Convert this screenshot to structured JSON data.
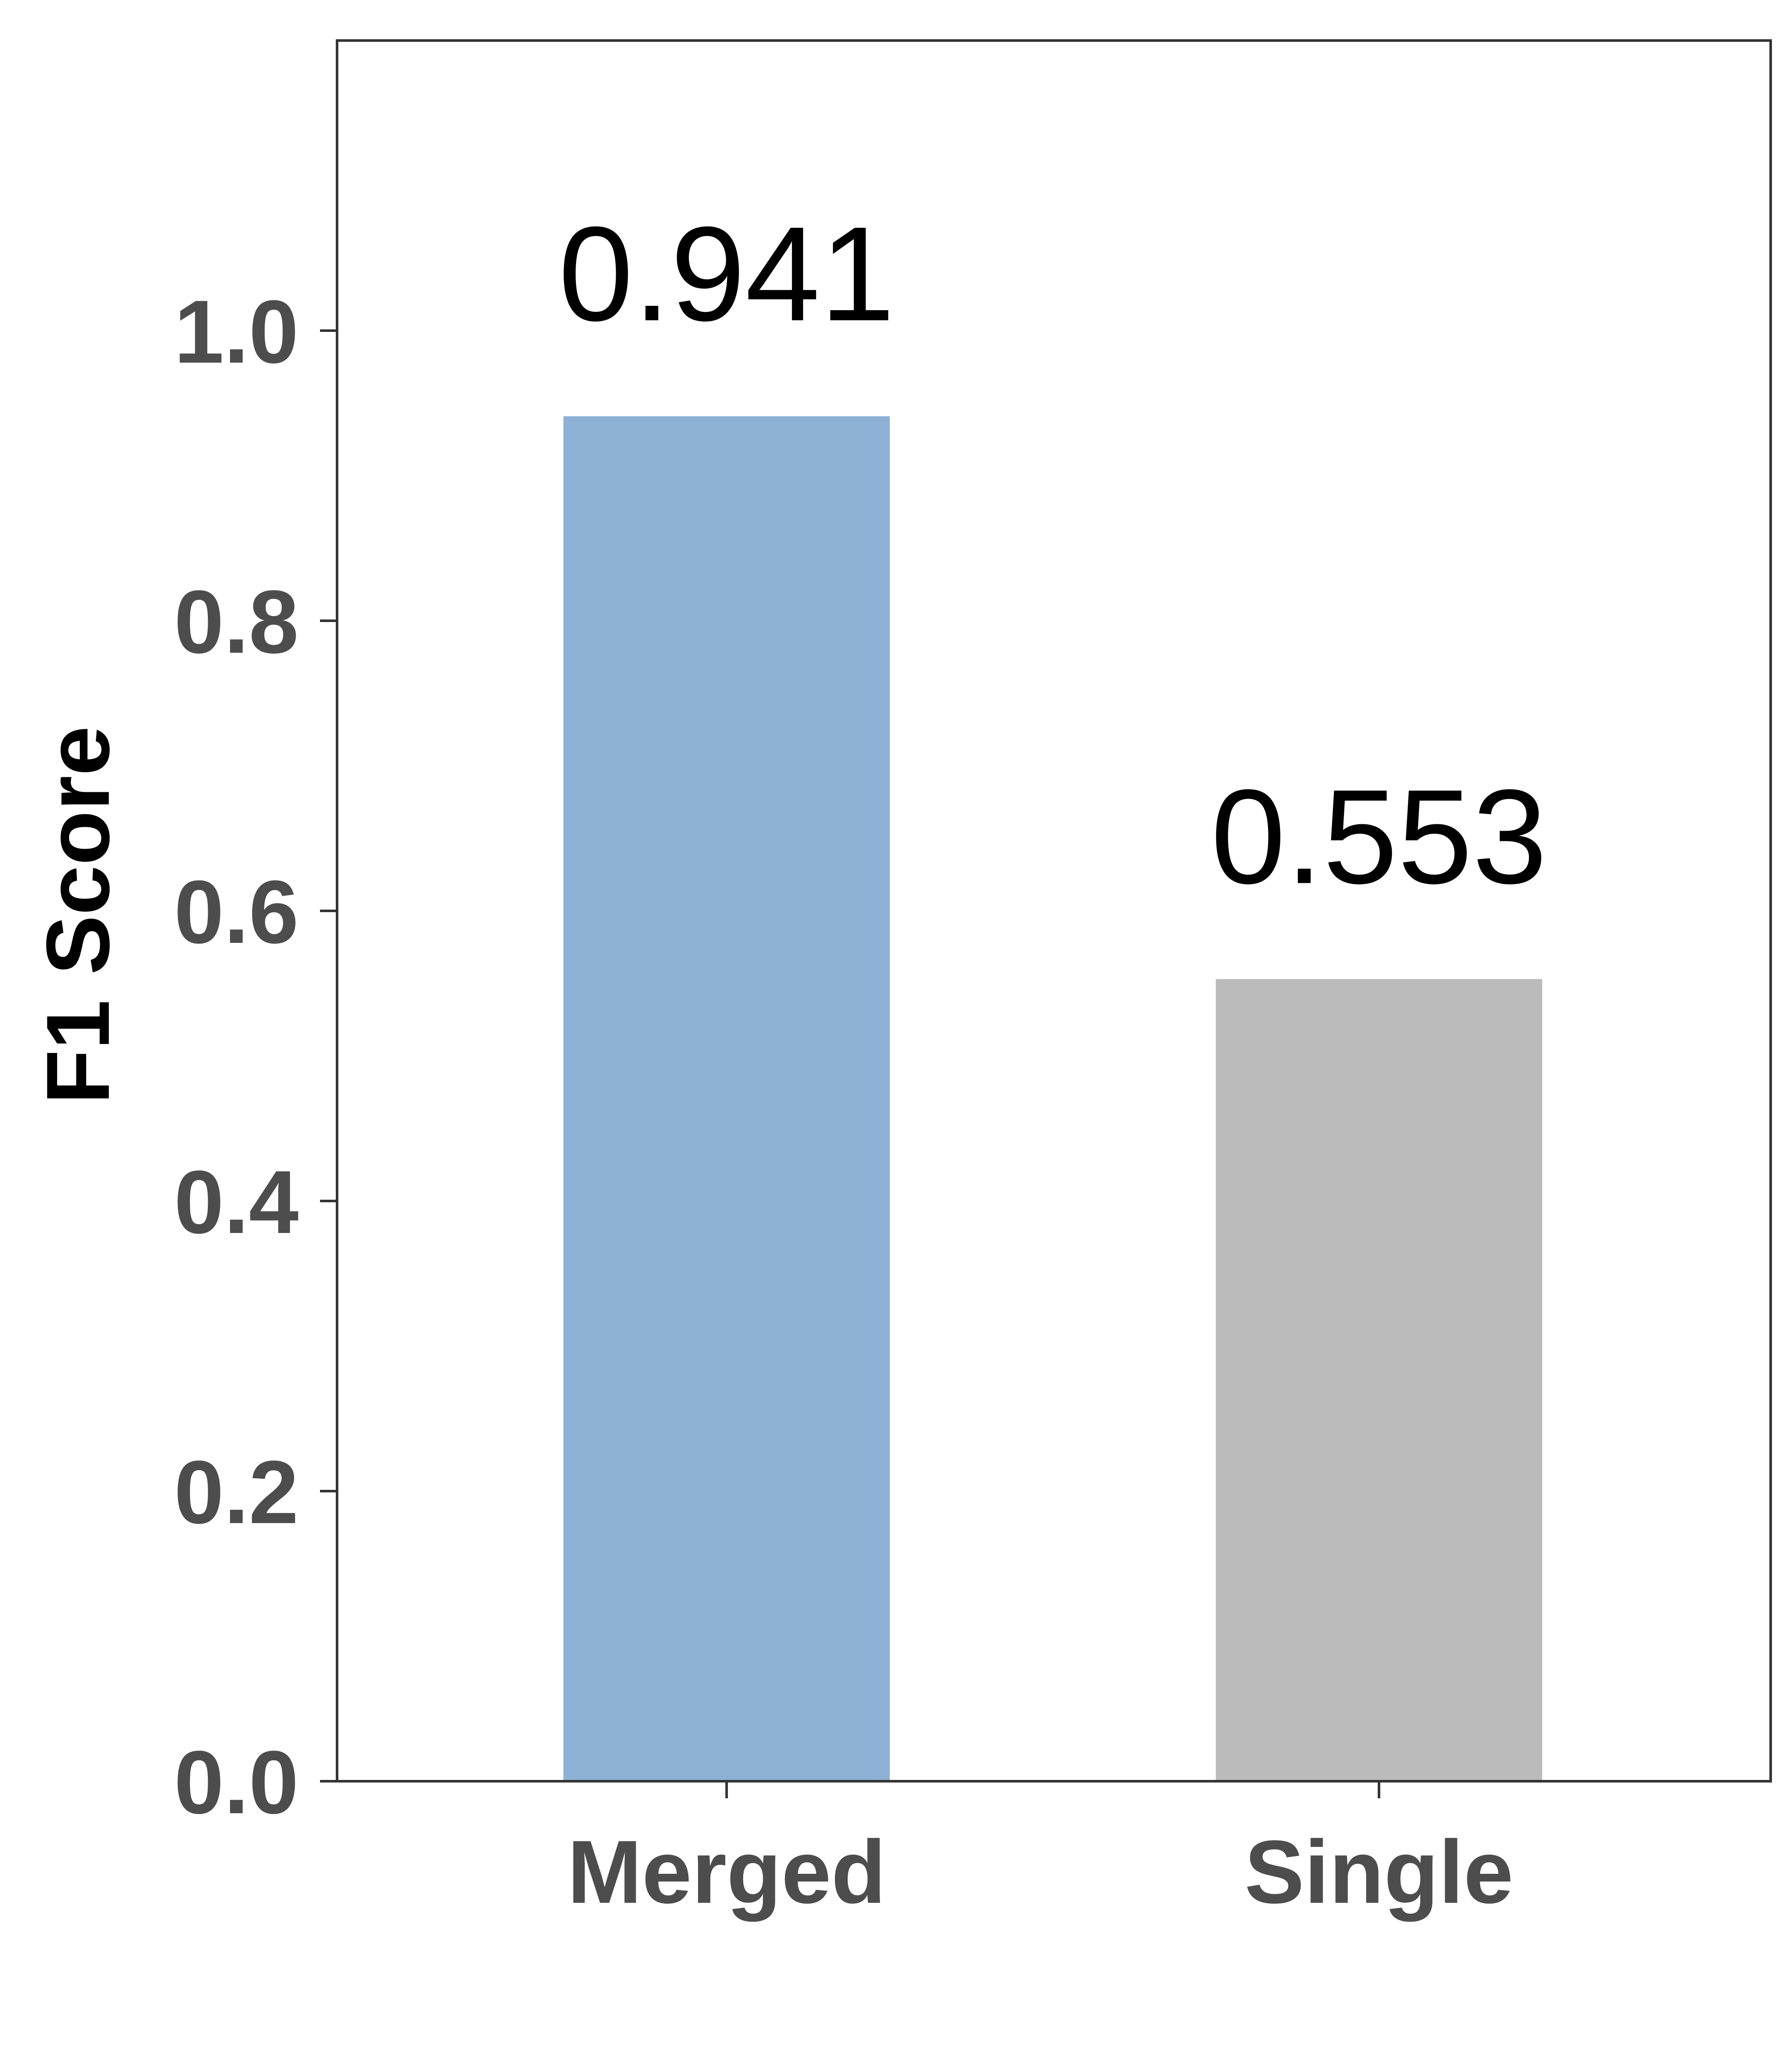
{
  "chart_data": {
    "type": "bar",
    "title": "",
    "xlabel": "",
    "ylabel": "F1 Score",
    "categories": [
      "Merged",
      "Single"
    ],
    "values": [
      0.941,
      0.553
    ],
    "data_labels": [
      "0.941",
      "0.553"
    ],
    "colors": [
      "#8DB1D5",
      "#BBBBBB"
    ],
    "ylim": [
      0,
      1.2
    ],
    "yticks": [
      0.0,
      0.2,
      0.4,
      0.6,
      0.8,
      1.0
    ],
    "ytick_labels": [
      "0.0",
      "0.2",
      "0.4",
      "0.6",
      "0.8",
      "1.0"
    ],
    "grid": false,
    "legend": "none",
    "frame": true,
    "text_color_ticks": "#4D4D4D",
    "text_color_labels": "#000000",
    "axis_color": "#333333"
  }
}
